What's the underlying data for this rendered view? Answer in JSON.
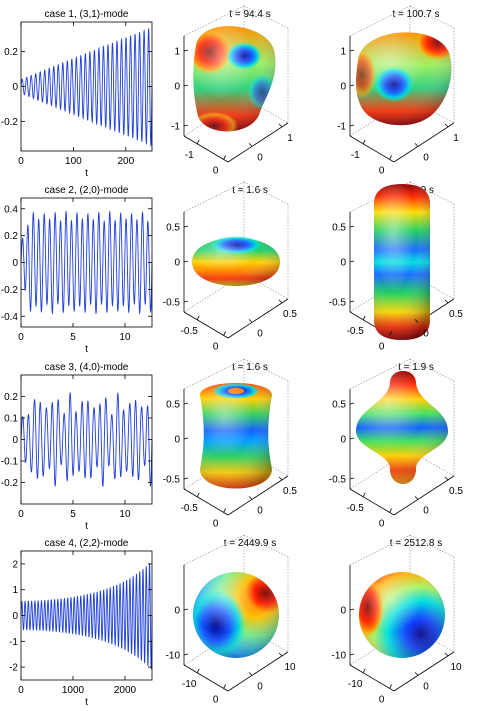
{
  "figure": {
    "rows": [
      {
        "plot_title": "case 1, (3,1)-mode",
        "xlabel": "t",
        "xlim": [
          0,
          250
        ],
        "ylim": [
          -0.37,
          0.37
        ],
        "xticks": [
          0,
          100,
          200
        ],
        "yticks": [
          -0.2,
          0,
          0.2
        ],
        "signal": {
          "amplitude_start": 0.04,
          "amplitude_end": 0.34,
          "growth": "linear",
          "cycles": 29,
          "modulation": 0.0
        },
        "snapshots": [
          {
            "title": "t = 94.4 s",
            "zticks": [
              "1",
              "0",
              "-1"
            ],
            "xticks": [
              "-1",
              "0"
            ],
            "yticks": [
              "0",
              "1"
            ],
            "shape": "blob-31-a"
          },
          {
            "title": "t = 100.7 s",
            "zticks": [
              "1",
              "0",
              "-1"
            ],
            "xticks": [
              "-1",
              "0"
            ],
            "yticks": [
              "0",
              "1"
            ],
            "shape": "blob-31-b"
          }
        ]
      },
      {
        "plot_title": "case 2, (2,0)-mode",
        "xlabel": "t",
        "xlim": [
          0,
          12.6
        ],
        "ylim": [
          -0.48,
          0.48
        ],
        "xticks": [
          0,
          5,
          10
        ],
        "yticks": [
          -0.4,
          -0.2,
          0,
          0.2,
          0.4
        ],
        "signal": {
          "amplitude_start": 0.35,
          "amplitude_end": 0.35,
          "growth": "step",
          "cycles": 24,
          "modulation": 0.05
        },
        "snapshots": [
          {
            "title": "t = 1.6 s",
            "zticks": [
              "0.5",
              "0",
              "-0.5"
            ],
            "xticks": [
              "-0.5",
              "0"
            ],
            "yticks": [
              "0",
              "0.5"
            ],
            "shape": "oblate-20"
          },
          {
            "title": "t = 1.9 s",
            "zticks": [
              "0.5",
              "0",
              "-0.5"
            ],
            "xticks": [
              "-0.5",
              "0"
            ],
            "yticks": [
              "0",
              "0.5"
            ],
            "shape": "prolate-20"
          }
        ]
      },
      {
        "plot_title": "case 3, (4,0)-mode",
        "xlabel": "t",
        "xlim": [
          0,
          12.6
        ],
        "ylim": [
          -0.3,
          0.3
        ],
        "xticks": [
          0,
          5,
          10
        ],
        "yticks": [
          -0.2,
          -0.1,
          0,
          0.1,
          0.2
        ],
        "signal": {
          "amplitude_start": 0.2,
          "amplitude_end": 0.2,
          "growth": "step",
          "cycles": 22,
          "modulation": 0.35
        },
        "snapshots": [
          {
            "title": "t = 1.6 s",
            "zticks": [
              "0.5",
              "0",
              "-0.5"
            ],
            "xticks": [
              "-0.5",
              "0"
            ],
            "yticks": [
              "0",
              "0.5"
            ],
            "shape": "drum-40"
          },
          {
            "title": "t = 1.9 s",
            "zticks": [
              "0.5",
              "0",
              "-0.5"
            ],
            "xticks": [
              "-0.5",
              "0"
            ],
            "yticks": [
              "0",
              "0.5"
            ],
            "shape": "disc-40"
          }
        ]
      },
      {
        "plot_title": "case 4, (2,2)-mode",
        "xlabel": "t",
        "xlim": [
          0,
          2520
        ],
        "ylim": [
          -2.5,
          2.5
        ],
        "xticks": [
          0,
          1000,
          2000
        ],
        "yticks": [
          -2,
          -1,
          0,
          1,
          2
        ],
        "signal": {
          "amplitude_start": 0.55,
          "amplitude_end": 2.1,
          "growth": "exponential",
          "cycles": 40,
          "modulation": 0.0
        },
        "snapshots": [
          {
            "title": "t = 2449.9 s",
            "zticks": [
              "0",
              "-10"
            ],
            "xticks": [
              "-10",
              "0"
            ],
            "yticks": [
              "0",
              "10"
            ],
            "shape": "sphere-22-a"
          },
          {
            "title": "t = 2512.8 s",
            "zticks": [
              "0",
              "-10"
            ],
            "xticks": [
              "-10",
              "0"
            ],
            "yticks": [
              "0",
              "10"
            ],
            "shape": "sphere-22-b"
          }
        ]
      }
    ],
    "colors": {
      "line": "#1f3fdc",
      "axis": "#000000",
      "grid": "#9a9a9a"
    }
  }
}
